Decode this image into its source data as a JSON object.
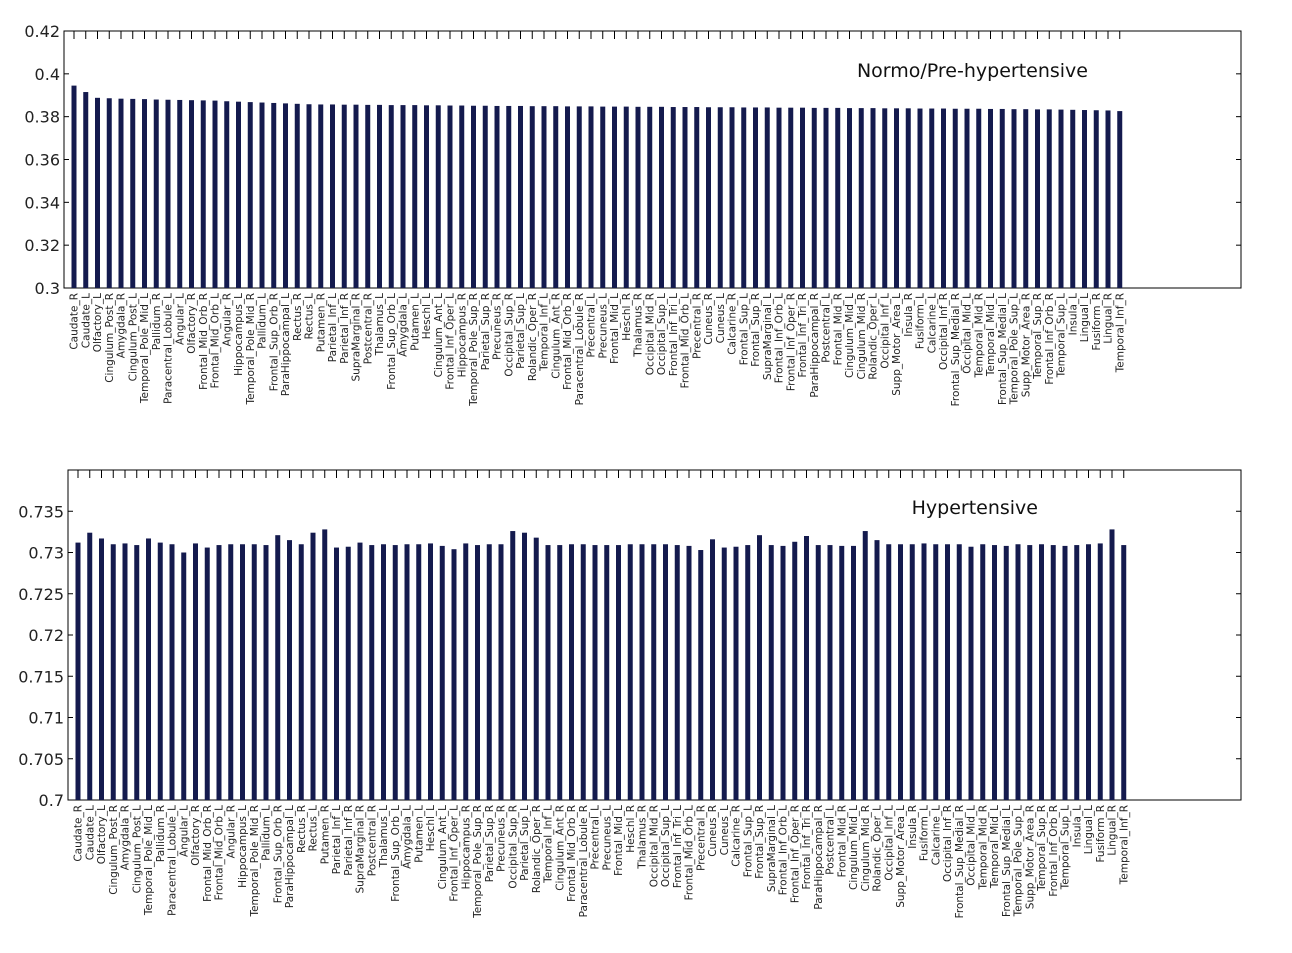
{
  "colors": {
    "bar": "#141a4e",
    "axis": "#000000"
  },
  "chart_data": [
    {
      "type": "bar",
      "title": "Normo/Pre-hypertensive",
      "xlabel": "",
      "ylabel": "",
      "ylim": [
        0.3,
        0.42
      ],
      "yticks": [
        0.3,
        0.32,
        0.34,
        0.36,
        0.38,
        0.4,
        0.42
      ],
      "ytick_labels": [
        "0.3",
        "0.32",
        "0.34",
        "0.36",
        "0.38",
        "0.4",
        "0.42"
      ],
      "title_position": "top-right",
      "grid": false,
      "categories": [
        "Caudate_R",
        "Caudate_L",
        "Olfactory_L",
        "Cingulum_Post_R",
        "Amygdala_R",
        "Cingulum_Post_L",
        "Temporal_Pole_Mid_L",
        "Pallidum_R",
        "Paracentral_Lobule_L",
        "Angular_L",
        "Olfactory_R",
        "Frontal_Mid_Orb_R",
        "Frontal_Mid_Orb_L",
        "Angular_R",
        "Hippocampus_L",
        "Temporal_Pole_Mid_R",
        "Pallidum_L",
        "Frontal_Sup_Orb_R",
        "ParaHippocampal_L",
        "Rectus_R",
        "Rectus_L",
        "Putamen_R",
        "Parietal_Inf_L",
        "Parietal_Inf_R",
        "SupraMarginal_R",
        "Postcentral_R",
        "Thalamus_L",
        "Frontal_Sup_Orb_L",
        "Amygdala_L",
        "Putamen_L",
        "Heschl_L",
        "Cingulum_Ant_L",
        "Frontal_Inf_Oper_L",
        "Hippocampus_R",
        "Temporal_Pole_Sup_R",
        "Parietal_Sup_R",
        "Precuneus_R",
        "Occipital_Sup_R",
        "Parietal_Sup_L",
        "Rolandic_Oper_R",
        "Temporal_Inf_L",
        "Cingulum_Ant_R",
        "Frontal_Mid_Orb_R",
        "Paracentral_Lobule_R",
        "Precentral_L",
        "Precuneus_L",
        "Frontal_Mid_L",
        "Heschl_R",
        "Thalamus_R",
        "Occipital_Mid_R",
        "Occipital_Sup_L",
        "Frontal_Inf_Tri_L",
        "Frontal_Mid_Orb_L",
        "Precentral_R",
        "Cuneus_R",
        "Cuneus_L",
        "Calcarine_R",
        "Frontal_Sup_L",
        "Frontal_Sup_R",
        "SupraMarginal_L",
        "Frontal_Inf_Orb_L",
        "Frontal_Inf_Oper_R",
        "Frontal_Inf_Tri_R",
        "ParaHippocampal_R",
        "Postcentral_L",
        "Frontal_Mid_R",
        "Cingulum_Mid_L",
        "Cingulum_Mid_R",
        "Rolandic_Oper_L",
        "Occipital_Inf_L",
        "Supp_Motor_Area_L",
        "Insula_R",
        "Fusiform_L",
        "Calcarine_L",
        "Occipital_Inf_R",
        "Frontal_Sup_Medial_R",
        "Occipital_Mid_L",
        "Temporal_Mid_R",
        "Temporal_Mid_L",
        "Frontal_Sup_Medial_L",
        "Temporal_Pole_Sup_L",
        "Supp_Motor_Area_R",
        "Temporal_Sup_R",
        "Frontal_Inf_Orb_R",
        "Temporal_Sup_L",
        "Insula_L",
        "Lingual_L",
        "Fusiform_R",
        "Lingual_R",
        "Temporal_Inf_R"
      ],
      "values": [
        0.3945,
        0.3915,
        0.3888,
        0.3886,
        0.3884,
        0.3883,
        0.3882,
        0.388,
        0.3879,
        0.3878,
        0.3877,
        0.3876,
        0.3875,
        0.3872,
        0.387,
        0.3868,
        0.3866,
        0.3864,
        0.3862,
        0.386,
        0.3858,
        0.3857,
        0.3857,
        0.3856,
        0.3856,
        0.3855,
        0.3855,
        0.3854,
        0.3854,
        0.3854,
        0.3853,
        0.3853,
        0.3852,
        0.3852,
        0.3851,
        0.3851,
        0.385,
        0.385,
        0.385,
        0.3849,
        0.3849,
        0.3849,
        0.3848,
        0.3848,
        0.3848,
        0.3847,
        0.3847,
        0.3847,
        0.3846,
        0.3846,
        0.3846,
        0.3845,
        0.3845,
        0.3845,
        0.3844,
        0.3844,
        0.3844,
        0.3843,
        0.3843,
        0.3843,
        0.3842,
        0.3842,
        0.3842,
        0.3841,
        0.3841,
        0.3841,
        0.384,
        0.384,
        0.384,
        0.3839,
        0.3839,
        0.3839,
        0.3838,
        0.3838,
        0.3838,
        0.3837,
        0.3837,
        0.3837,
        0.3836,
        0.3836,
        0.3835,
        0.3835,
        0.3834,
        0.3834,
        0.3833,
        0.3832,
        0.3831,
        0.383,
        0.3829,
        0.3826
      ]
    },
    {
      "type": "bar",
      "title": "Hypertensive",
      "xlabel": "",
      "ylabel": "",
      "ylim": [
        0.7,
        0.74
      ],
      "yticks": [
        0.7,
        0.705,
        0.71,
        0.715,
        0.72,
        0.725,
        0.73,
        0.735
      ],
      "ytick_labels": [
        "0.7",
        "0.705",
        "0.71",
        "0.715",
        "0.72",
        "0.725",
        "0.73",
        "0.735"
      ],
      "title_position": "top-right",
      "grid": false,
      "categories": [
        "Caudate_R",
        "Caudate_L",
        "Olfactory_L",
        "Cingulum_Post_R",
        "Amygdala_R",
        "Cingulum_Post_L",
        "Temporal_Pole_Mid_L",
        "Pallidum_R",
        "Paracentral_Lobule_L",
        "Angular_L",
        "Olfactory_R",
        "Frontal_Mid_Orb_R",
        "Frontal_Mid_Orb_L",
        "Angular_R",
        "Hippocampus_L",
        "Temporal_Pole_Mid_R",
        "Pallidum_L",
        "Frontal_Sup_Orb_R",
        "ParaHippocampal_L",
        "Rectus_R",
        "Rectus_L",
        "Putamen_R",
        "Parietal_Inf_L",
        "Parietal_Inf_R",
        "SupraMarginal_R",
        "Postcentral_R",
        "Thalamus_L",
        "Frontal_Sup_Orb_L",
        "Amygdala_L",
        "Putamen_L",
        "Heschl_L",
        "Cingulum_Ant_L",
        "Frontal_Inf_Oper_L",
        "Hippocampus_R",
        "Temporal_Pole_Sup_R",
        "Parietal_Sup_R",
        "Precuneus_R",
        "Occipital_Sup_R",
        "Parietal_Sup_L",
        "Rolandic_Oper_R",
        "Temporal_Inf_L",
        "Cingulum_Ant_R",
        "Frontal_Mid_Orb_R",
        "Paracentral_Lobule_R",
        "Precentral_L",
        "Precuneus_L",
        "Frontal_Mid_L",
        "Heschl_R",
        "Thalamus_R",
        "Occipital_Mid_R",
        "Occipital_Sup_L",
        "Frontal_Inf_Tri_L",
        "Frontal_Mid_Orb_L",
        "Precentral_R",
        "Cuneus_R",
        "Cuneus_L",
        "Calcarine_R",
        "Frontal_Sup_L",
        "Frontal_Sup_R",
        "SupraMarginal_L",
        "Frontal_Inf_Orb_L",
        "Frontal_Inf_Oper_R",
        "Frontal_Inf_Tri_R",
        "ParaHippocampal_R",
        "Postcentral_L",
        "Frontal_Mid_R",
        "Cingulum_Mid_L",
        "Cingulum_Mid_R",
        "Rolandic_Oper_L",
        "Occipital_Inf_L",
        "Supp_Motor_Area_L",
        "Insula_R",
        "Fusiform_L",
        "Calcarine_L",
        "Occipital_Inf_R",
        "Frontal_Sup_Medial_R",
        "Occipital_Mid_L",
        "Temporal_Mid_R",
        "Temporal_Mid_L",
        "Frontal_Sup_Medial_L",
        "Temporal_Pole_Sup_L",
        "Supp_Motor_Area_R",
        "Temporal_Sup_R",
        "Frontal_Inf_Orb_R",
        "Temporal_Sup_L",
        "Insula_L",
        "Lingual_L",
        "Fusiform_R",
        "Lingual_R",
        "Temporal_Inf_R"
      ],
      "values": [
        0.7312,
        0.7324,
        0.7317,
        0.731,
        0.7311,
        0.7309,
        0.7317,
        0.7312,
        0.731,
        0.73,
        0.7311,
        0.7306,
        0.7309,
        0.731,
        0.731,
        0.731,
        0.7309,
        0.7321,
        0.7315,
        0.731,
        0.7324,
        0.7328,
        0.7306,
        0.7307,
        0.7312,
        0.7309,
        0.731,
        0.7309,
        0.731,
        0.731,
        0.7311,
        0.7308,
        0.7304,
        0.7311,
        0.7309,
        0.731,
        0.731,
        0.7326,
        0.7324,
        0.7318,
        0.7309,
        0.7309,
        0.731,
        0.731,
        0.7309,
        0.7309,
        0.7309,
        0.731,
        0.731,
        0.731,
        0.731,
        0.7309,
        0.7308,
        0.7303,
        0.7316,
        0.7306,
        0.7307,
        0.7309,
        0.7321,
        0.7309,
        0.7308,
        0.7313,
        0.732,
        0.7309,
        0.7309,
        0.7308,
        0.7308,
        0.7326,
        0.7315,
        0.731,
        0.731,
        0.731,
        0.7311,
        0.731,
        0.731,
        0.731,
        0.7307,
        0.731,
        0.7309,
        0.7308,
        0.731,
        0.7309,
        0.731,
        0.7309,
        0.7308,
        0.7309,
        0.731,
        0.7311,
        0.7328,
        0.7309
      ]
    }
  ]
}
